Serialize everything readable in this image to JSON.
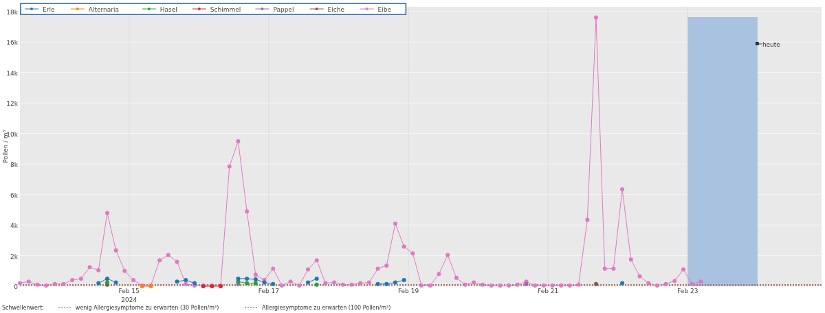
{
  "chart_data": {
    "type": "line",
    "ylabel": "Pollen / m³",
    "marker": "circle",
    "line_style": "solid",
    "grid": true,
    "legend": "top left",
    "x": [
      "2024-02-13T10:30",
      "2024-02-13T13:30",
      "2024-02-13T16:30",
      "2024-02-13T19:30",
      "2024-02-13T22:30",
      "2024-02-14T01:30",
      "2024-02-14T04:30",
      "2024-02-14T07:30",
      "2024-02-14T10:30",
      "2024-02-14T13:30",
      "2024-02-14T16:30",
      "2024-02-14T19:30",
      "2024-02-14T22:30",
      "2024-02-15T01:30",
      "2024-02-15T04:30",
      "2024-02-15T07:30",
      "2024-02-15T10:30",
      "2024-02-15T13:30",
      "2024-02-15T16:30",
      "2024-02-15T19:30",
      "2024-02-15T22:30",
      "2024-02-16T01:30",
      "2024-02-16T04:30",
      "2024-02-16T07:30",
      "2024-02-16T10:30",
      "2024-02-16T13:30",
      "2024-02-16T16:30",
      "2024-02-16T19:30",
      "2024-02-16T22:30",
      "2024-02-17T01:30",
      "2024-02-17T04:30",
      "2024-02-17T07:30",
      "2024-02-17T10:30",
      "2024-02-17T13:30",
      "2024-02-17T16:30",
      "2024-02-17T19:30",
      "2024-02-17T22:30",
      "2024-02-18T01:30",
      "2024-02-18T04:30",
      "2024-02-18T07:30",
      "2024-02-18T10:30",
      "2024-02-18T13:30",
      "2024-02-18T16:30",
      "2024-02-18T19:30",
      "2024-02-18T22:30",
      "2024-02-19T01:30",
      "2024-02-19T04:30",
      "2024-02-19T07:30",
      "2024-02-19T10:30",
      "2024-02-19T13:30",
      "2024-02-19T16:30",
      "2024-02-19T19:30",
      "2024-02-19T22:30",
      "2024-02-20T01:30",
      "2024-02-20T04:30",
      "2024-02-20T07:30",
      "2024-02-20T10:30",
      "2024-02-20T13:30",
      "2024-02-20T16:30",
      "2024-02-20T19:30",
      "2024-02-20T22:30",
      "2024-02-21T01:30",
      "2024-02-21T04:30",
      "2024-02-21T07:30",
      "2024-02-21T10:30",
      "2024-02-21T13:30",
      "2024-02-21T16:30",
      "2024-02-21T19:30",
      "2024-02-21T22:30",
      "2024-02-22T01:30",
      "2024-02-22T04:30",
      "2024-02-22T07:30",
      "2024-02-22T10:30",
      "2024-02-22T13:30",
      "2024-02-22T16:30",
      "2024-02-22T19:30",
      "2024-02-22T22:30",
      "2024-02-23T01:30",
      "2024-02-23T04:30"
    ],
    "xlim": [
      "2024-02-13T10:30",
      "2024-02-24T22:00"
    ],
    "xticks": [
      {
        "value": "2024-02-15",
        "label": "Feb 15\n2024"
      },
      {
        "value": "2024-02-17",
        "label": "Feb 17"
      },
      {
        "value": "2024-02-19",
        "label": "Feb 19"
      },
      {
        "value": "2024-02-21",
        "label": "Feb 21"
      },
      {
        "value": "2024-02-23",
        "label": "Feb 23"
      }
    ],
    "ylim": [
      0,
      18300
    ],
    "yticks": [
      0,
      {
        "value": 2000,
        "label": "2k"
      },
      {
        "value": 4000,
        "label": "4k"
      },
      {
        "value": 6000,
        "label": "6k"
      },
      {
        "value": 8000,
        "label": "8k"
      },
      {
        "value": 10000,
        "label": "10k"
      },
      {
        "value": 12000,
        "label": "12k"
      },
      {
        "value": 14000,
        "label": "14k"
      },
      {
        "value": 16000,
        "label": "16k"
      },
      {
        "value": 18000,
        "label": "18k"
      }
    ],
    "series": [
      {
        "name": "Erle",
        "color": "#1f77b4",
        "values": [
          null,
          null,
          null,
          null,
          null,
          null,
          null,
          null,
          null,
          200,
          500,
          250,
          null,
          null,
          null,
          null,
          null,
          null,
          300,
          400,
          200,
          null,
          null,
          null,
          null,
          500,
          500,
          450,
          250,
          150,
          null,
          null,
          null,
          250,
          500,
          null,
          null,
          null,
          null,
          null,
          null,
          150,
          150,
          250,
          400,
          null,
          null,
          null,
          null,
          null,
          null,
          null,
          null,
          null,
          null,
          null,
          null,
          null,
          null,
          null,
          null,
          null,
          null,
          null,
          null,
          null,
          null,
          null,
          null,
          200,
          null,
          null,
          null,
          null,
          null,
          null,
          null,
          null,
          null
        ]
      },
      {
        "name": "Alternaria",
        "color": "#ff7f0e",
        "values": [
          null,
          null,
          null,
          null,
          null,
          null,
          null,
          null,
          null,
          null,
          null,
          null,
          null,
          null,
          0,
          0,
          null,
          null,
          null,
          null,
          null,
          null,
          null,
          null,
          null,
          null,
          null,
          null,
          null,
          null,
          null,
          null,
          null,
          null,
          null,
          null,
          null,
          null,
          null,
          null,
          null,
          null,
          null,
          null,
          null,
          null,
          null,
          null,
          null,
          null,
          null,
          null,
          null,
          null,
          null,
          null,
          null,
          null,
          null,
          null,
          null,
          null,
          null,
          null,
          null,
          null,
          null,
          null,
          null,
          null,
          null,
          null,
          null,
          null,
          null,
          null,
          null,
          null,
          null
        ]
      },
      {
        "name": "Hasel",
        "color": "#2ca02c",
        "values": [
          null,
          null,
          null,
          null,
          null,
          null,
          null,
          null,
          null,
          null,
          250,
          null,
          null,
          null,
          null,
          null,
          null,
          null,
          null,
          null,
          null,
          null,
          null,
          null,
          null,
          300,
          200,
          200,
          null,
          null,
          null,
          null,
          null,
          null,
          100,
          null,
          null,
          null,
          null,
          null,
          null,
          null,
          null,
          null,
          null,
          null,
          null,
          null,
          null,
          null,
          null,
          null,
          null,
          null,
          null,
          null,
          null,
          null,
          null,
          null,
          null,
          null,
          null,
          null,
          null,
          null,
          null,
          null,
          null,
          null,
          null,
          null,
          null,
          null,
          null,
          null,
          null,
          null,
          null
        ]
      },
      {
        "name": "Schimmel",
        "color": "#d62728",
        "values": [
          null,
          null,
          null,
          null,
          null,
          null,
          null,
          null,
          null,
          null,
          null,
          null,
          null,
          null,
          null,
          null,
          null,
          null,
          null,
          null,
          null,
          0,
          0,
          0,
          null,
          null,
          null,
          null,
          null,
          null,
          null,
          null,
          null,
          null,
          null,
          null,
          null,
          null,
          null,
          null,
          null,
          null,
          null,
          null,
          null,
          null,
          null,
          null,
          null,
          null,
          null,
          null,
          null,
          null,
          null,
          null,
          null,
          null,
          null,
          null,
          null,
          null,
          null,
          null,
          null,
          null,
          null,
          null,
          null,
          null,
          null,
          null,
          null,
          null,
          null,
          null,
          null,
          null,
          null
        ]
      },
      {
        "name": "Pappel",
        "color": "#9467bd",
        "values": [
          null,
          null,
          null,
          null,
          null,
          null,
          null,
          null,
          null,
          null,
          null,
          null,
          null,
          null,
          null,
          null,
          null,
          null,
          null,
          null,
          null,
          null,
          null,
          null,
          null,
          150,
          null,
          null,
          null,
          null,
          null,
          null,
          null,
          null,
          null,
          null,
          null,
          null,
          null,
          null,
          null,
          null,
          null,
          null,
          null,
          null,
          null,
          null,
          null,
          null,
          null,
          null,
          null,
          null,
          null,
          null,
          null,
          null,
          150,
          null,
          null,
          null,
          null,
          null,
          null,
          null,
          null,
          null,
          null,
          null,
          null,
          null,
          null,
          null,
          null,
          null,
          null,
          null,
          null
        ]
      },
      {
        "name": "Eiche",
        "color": "#8c564b",
        "values": [
          null,
          null,
          null,
          null,
          null,
          null,
          null,
          null,
          null,
          null,
          100,
          null,
          null,
          null,
          null,
          null,
          null,
          null,
          null,
          null,
          null,
          null,
          null,
          null,
          null,
          null,
          null,
          null,
          null,
          null,
          null,
          null,
          null,
          null,
          null,
          null,
          null,
          null,
          null,
          null,
          null,
          null,
          null,
          null,
          null,
          null,
          null,
          null,
          null,
          null,
          null,
          null,
          null,
          null,
          null,
          null,
          null,
          null,
          null,
          null,
          null,
          null,
          null,
          null,
          null,
          null,
          150,
          null,
          null,
          null,
          null,
          null,
          null,
          null,
          null,
          null,
          null,
          null,
          null
        ]
      },
      {
        "name": "Eibe",
        "color": "#e377c2",
        "values": [
          200,
          300,
          100,
          50,
          150,
          150,
          400,
          500,
          1250,
          1050,
          4800,
          2350,
          1000,
          400,
          50,
          50,
          1700,
          2050,
          1600,
          150,
          50,
          50,
          50,
          50,
          7850,
          9500,
          4900,
          750,
          400,
          1150,
          50,
          300,
          50,
          1100,
          1700,
          200,
          250,
          100,
          100,
          200,
          250,
          1150,
          1350,
          4100,
          2600,
          2150,
          50,
          50,
          800,
          2050,
          550,
          100,
          250,
          100,
          50,
          50,
          50,
          100,
          300,
          50,
          50,
          50,
          50,
          50,
          100,
          4350,
          17600,
          1150,
          1150,
          6350,
          1750,
          650,
          200,
          50,
          150,
          350,
          1100,
          150,
          300
        ]
      }
    ],
    "bands": [
      {
        "axis": "x",
        "from": "2024-02-23",
        "to": "2024-02-24",
        "label": "heute",
        "color": "#a8c2e0"
      }
    ],
    "ref_lines": [
      {
        "axis": "y",
        "value": 30,
        "color": "#5cb85c",
        "line_style": "dotted"
      },
      {
        "axis": "y",
        "value": 100,
        "color": "#e0567a",
        "line_style": "dotted"
      }
    ],
    "annotations": [
      "Schwellenwert:",
      "wenig Allergiesymptome zu erwarten (30 Pollen/m³)",
      "Allergiesymptome zu erwarten (100 Pollen/m³)"
    ]
  }
}
